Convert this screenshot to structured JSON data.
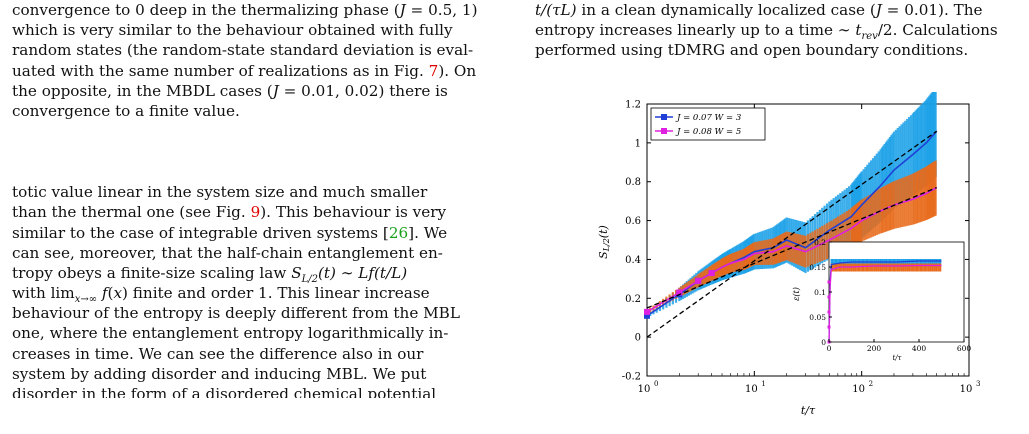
{
  "left_top": [
    [
      "convergence to 0 deep in the thermalizing phase (",
      "J",
      " = 0.5, 1)"
    ],
    [
      "which is very similar to the behaviour obtained with fully"
    ],
    [
      "random states (the random-state standard deviation is eval-"
    ],
    [
      "uated with the same number of realizations as in Fig. ",
      "7",
      ").  On"
    ],
    [
      "the opposite, in the MBDL cases (",
      "J",
      " = 0.01, 0.02) there is"
    ],
    [
      "convergence to a finite value."
    ]
  ],
  "left_bottom": {
    "l1": "totic value linear in the system size and much smaller",
    "l2a": "than the thermal one (see Fig. ",
    "l2ref": "9",
    "l2b": "). This behaviour is very",
    "l3a": "similar to the case of integrable driven systems [",
    "l3ref": "26",
    "l3b": "]. We",
    "l4": "can see, moreover, that the half-chain entanglement en-",
    "l5a": "tropy obeys a finite-size scaling law ",
    "l5m": "S_{L/2}(t) ~ Lf(t/L)",
    "l6a": "with lim",
    "l6b": " f(x) finite and order 1. This linear increase",
    "l7": "behaviour of the entropy is deeply different from the MBL",
    "l8": "one, where the entanglement entropy logarithmically in-",
    "l9": "creases in time.  We can see the difference also in our",
    "l10": "system by adding disorder and inducing MBL. We put",
    "l11": "disorder in the form of a disordered chemical potential"
  },
  "right_caption": {
    "l1a": "t/(τL)",
    "l1b": " in a clean dynamically localized case (",
    "l1c": "J",
    "l1d": " = 0.01). The",
    "l2a": "entropy increases linearly up to a time ∼ ",
    "l2m": "t",
    "l2sub": "rev",
    "l2b": "/2. Calculations",
    "l3": "performed using tDMRG and open boundary conditions."
  },
  "chart_data": [
    {
      "type": "line",
      "ylabel": "S_{L/2}(t)",
      "xlabel": "t/τ",
      "xscale": "log",
      "xlim": [
        1,
        1000
      ],
      "ylim": [
        -0.2,
        1.2
      ],
      "yticks": [
        "-0.2",
        "0",
        "0.2",
        "0.4",
        "0.6",
        "0.8",
        "1",
        "1.2"
      ],
      "xticks": [
        "10",
        "10",
        "10",
        "10"
      ],
      "xtick_exp": [
        "0",
        "1",
        "2",
        "3"
      ],
      "legend": [
        "J = 0.07 W = 3",
        "J = 0.08 W = 5"
      ],
      "legend_placement": "top-left",
      "colors": {
        "s1": "#1f3fd6",
        "s1_band": "#1aa0e8",
        "s2": "#e020e0",
        "s2_band": "#e86a1a",
        "fit": "#000000"
      },
      "series": [
        {
          "name": "J = 0.07 W = 3",
          "x": [
            1,
            2,
            3,
            4,
            5,
            6,
            8,
            10,
            15,
            20,
            30,
            50,
            80,
            100,
            150,
            200,
            300,
            400,
            500
          ],
          "y": [
            0.11,
            0.22,
            0.29,
            0.33,
            0.36,
            0.38,
            0.41,
            0.44,
            0.46,
            0.5,
            0.46,
            0.55,
            0.62,
            0.68,
            0.78,
            0.86,
            0.94,
            1.0,
            1.06
          ]
        },
        {
          "name": "J = 0.08 W = 5",
          "x": [
            1,
            2,
            3,
            4,
            5,
            6,
            8,
            10,
            15,
            20,
            30,
            50,
            80,
            100,
            150,
            200,
            300,
            400,
            500
          ],
          "y": [
            0.13,
            0.23,
            0.29,
            0.33,
            0.36,
            0.38,
            0.4,
            0.43,
            0.44,
            0.47,
            0.44,
            0.5,
            0.56,
            0.6,
            0.65,
            0.68,
            0.71,
            0.74,
            0.77
          ]
        }
      ],
      "fit_lines": [
        {
          "x": [
            1,
            500
          ],
          "y": [
            0.0,
            1.06
          ]
        },
        {
          "x": [
            1,
            500
          ],
          "y": [
            0.15,
            0.77
          ]
        }
      ]
    },
    {
      "type": "line",
      "ylabel": "ε(t)",
      "xlabel": "t/τ",
      "xlim": [
        0,
        600
      ],
      "ylim": [
        0,
        0.2
      ],
      "yticks": [
        "0",
        "0.05",
        "0.1",
        "0.15",
        "0.2"
      ],
      "xticks": [
        "0",
        "200",
        "400",
        "600"
      ],
      "series": [
        {
          "name": "J = 0.07 W = 3",
          "x": [
            0,
            5,
            10,
            50,
            100,
            200,
            300,
            400,
            500
          ],
          "y": [
            0,
            0.12,
            0.155,
            0.158,
            0.16,
            0.16,
            0.16,
            0.162,
            0.162
          ]
        },
        {
          "name": "J = 0.08 W = 5",
          "x": [
            0,
            5,
            10,
            50,
            100,
            200,
            300,
            400,
            500
          ],
          "y": [
            0,
            0.11,
            0.145,
            0.15,
            0.15,
            0.152,
            0.152,
            0.153,
            0.153
          ]
        }
      ]
    }
  ]
}
